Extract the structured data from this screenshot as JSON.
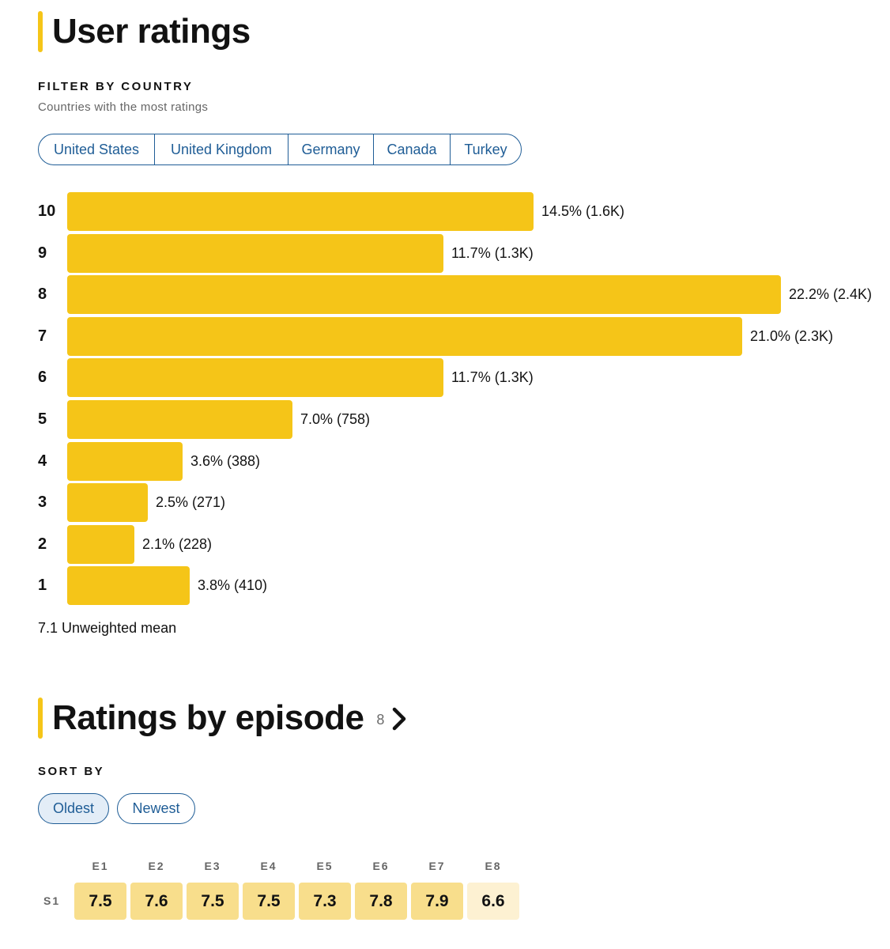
{
  "user_ratings": {
    "title": "User ratings",
    "filter": {
      "label": "FILTER BY COUNTRY",
      "subtitle": "Countries with the most ratings",
      "countries": [
        "United States",
        "United Kingdom",
        "Germany",
        "Canada",
        "Turkey"
      ]
    },
    "mean_text": "7.1 Unweighted mean"
  },
  "chart_data": {
    "type": "bar",
    "orientation": "horizontal",
    "categories": [
      "10",
      "9",
      "8",
      "7",
      "6",
      "5",
      "4",
      "3",
      "2",
      "1"
    ],
    "values": [
      14.5,
      11.7,
      22.2,
      21.0,
      11.7,
      7.0,
      3.6,
      2.5,
      2.1,
      3.8
    ],
    "labels": [
      "14.5% (1.6K)",
      "11.7% (1.3K)",
      "22.2% (2.4K)",
      "21.0% (2.3K)",
      "11.7% (1.3K)",
      "7.0% (758)",
      "3.6% (388)",
      "2.5% (271)",
      "2.1% (228)",
      "3.8% (410)"
    ],
    "bar_color": "#f5c518",
    "grid": false
  },
  "episodes": {
    "title": "Ratings by episode",
    "count": "8",
    "chevron_icon": "chevron-right-icon",
    "sort_label": "SORT BY",
    "sort_options": [
      "Oldest",
      "Newest"
    ],
    "active_sort": "Oldest",
    "season_label": "S1",
    "headers": [
      "E1",
      "E2",
      "E3",
      "E4",
      "E5",
      "E6",
      "E7",
      "E8"
    ],
    "ratings": [
      "7.5",
      "7.6",
      "7.5",
      "7.5",
      "7.3",
      "7.8",
      "7.9",
      "6.6"
    ],
    "colors": {
      "high": "#f8de8c",
      "low": "#fdf1d2"
    }
  }
}
